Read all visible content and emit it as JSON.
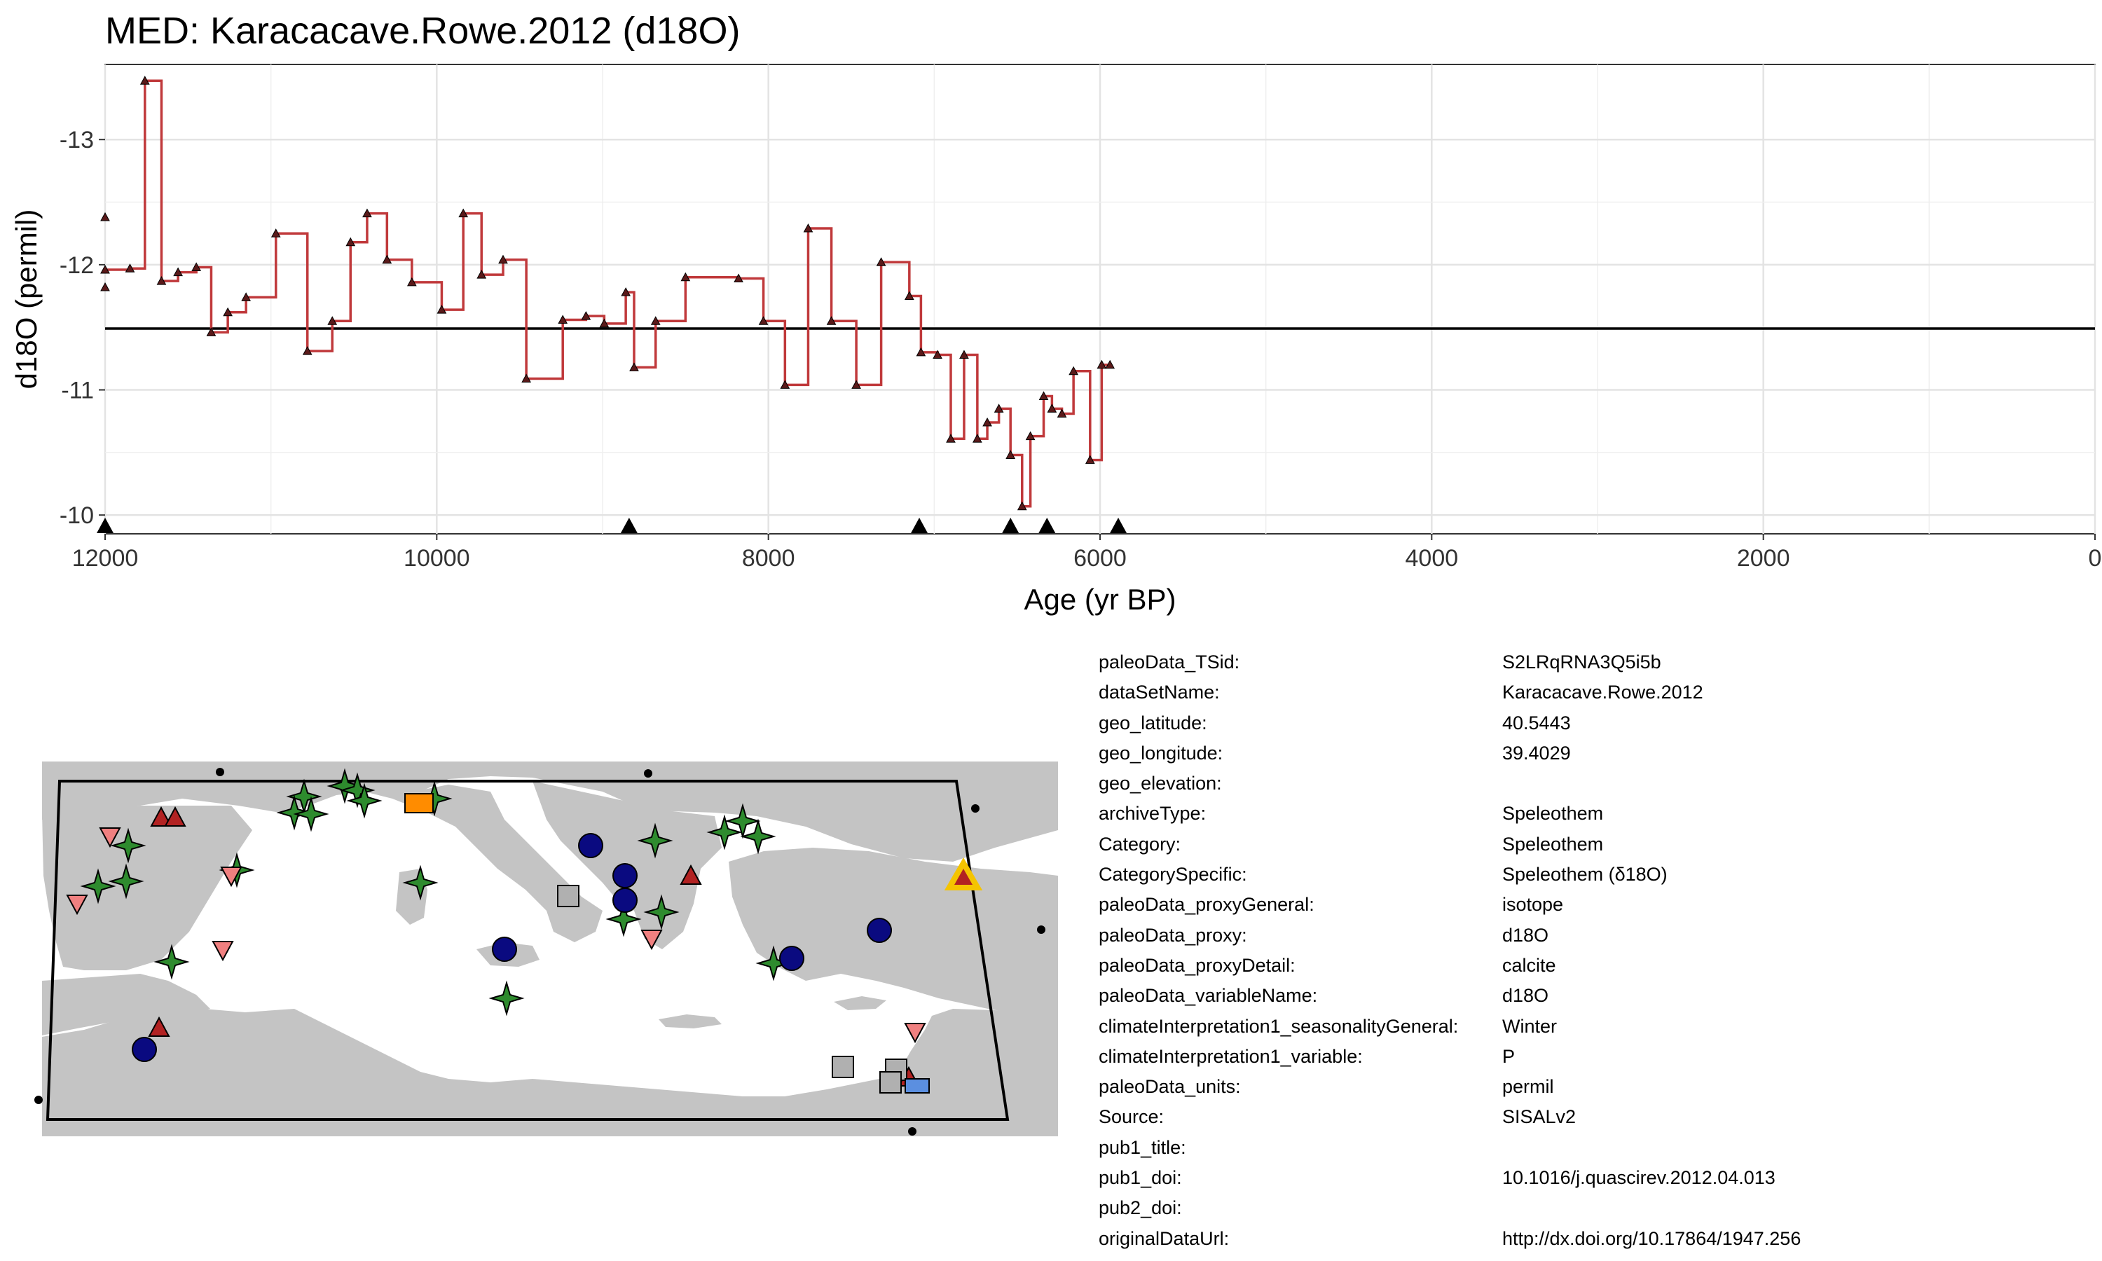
{
  "title": "MED: Karacacave.Rowe.2012 (d18O)",
  "chart_data": {
    "type": "line",
    "title": "MED: Karacacave.Rowe.2012 (d18O)",
    "xlabel": "Age (yr BP)",
    "ylabel": "d18O (permil)",
    "x_reversed": true,
    "y_reversed": true,
    "xlim": [
      12000,
      0
    ],
    "ylim": [
      -13.6,
      -9.85
    ],
    "xticks": [
      "12000",
      "10000",
      "8000",
      "6000",
      "4000",
      "2000",
      "0"
    ],
    "yticks": [
      "-13",
      "-12",
      "-11",
      "-10"
    ],
    "grid": true,
    "series": [
      {
        "line_style": "step",
        "line_color": "#c0393b",
        "marker_color": "#5a1a1a",
        "x": [
          12000,
          11850,
          11760,
          11660,
          11560,
          11450,
          11360,
          11260,
          11150,
          10970,
          10780,
          10630,
          10520,
          10420,
          10300,
          10150,
          9970,
          9840,
          9730,
          9600,
          9460,
          9240,
          9100,
          8990,
          8860,
          8810,
          8680,
          8500,
          8180,
          8030,
          7900,
          7760,
          7620,
          7470,
          7320,
          7150,
          7080,
          6980,
          6900,
          6820,
          6740,
          6680,
          6610,
          6540,
          6470,
          6420,
          6340,
          6290,
          6230,
          6160,
          6060,
          5990,
          5940
        ],
        "y": [
          -11.96,
          -11.97,
          -13.47,
          -11.87,
          -11.94,
          -11.98,
          -11.46,
          -11.62,
          -11.74,
          -12.25,
          -11.31,
          -11.55,
          -12.18,
          -12.41,
          -12.04,
          -11.86,
          -11.64,
          -12.41,
          -11.92,
          -12.04,
          -11.09,
          -11.56,
          -11.59,
          -11.53,
          -11.78,
          -11.18,
          -11.55,
          -11.9,
          -11.89,
          -11.55,
          -11.04,
          -12.29,
          -11.55,
          -11.04,
          -12.02,
          -11.75,
          -11.3,
          -11.28,
          -10.61,
          -11.28,
          -10.61,
          -10.74,
          -10.85,
          -10.48,
          -10.07,
          -10.63,
          -10.95,
          -10.85,
          -10.81,
          -11.15,
          -10.44,
          -11.2,
          -11.2
        ]
      }
    ],
    "hline": -11.49,
    "extra_markers": [
      {
        "x": 12000,
        "y": -12.38
      },
      {
        "x": 12000,
        "y": -11.82
      }
    ],
    "age_markers": [
      12000,
      8840,
      7090,
      6540,
      6320,
      5890
    ]
  },
  "metadata": [
    {
      "key": "paleoData_TSid:",
      "value": "S2LRqRNA3Q5i5b"
    },
    {
      "key": "dataSetName:",
      "value": "Karacacave.Rowe.2012"
    },
    {
      "key": "geo_latitude:",
      "value": "40.5443"
    },
    {
      "key": "geo_longitude:",
      "value": "39.4029"
    },
    {
      "key": "geo_elevation:",
      "value": ""
    },
    {
      "key": "archiveType:",
      "value": "Speleothem"
    },
    {
      "key": "Category:",
      "value": "Speleothem"
    },
    {
      "key": "CategorySpecific:",
      "value": "Speleothem (δ18O)"
    },
    {
      "key": "paleoData_proxyGeneral:",
      "value": "isotope"
    },
    {
      "key": "paleoData_proxy:",
      "value": "d18O"
    },
    {
      "key": "paleoData_proxyDetail:",
      "value": "calcite"
    },
    {
      "key": "paleoData_variableName:",
      "value": "d18O"
    },
    {
      "key": "climateInterpretation1_seasonalityGeneral:",
      "value": "Winter"
    },
    {
      "key": "climateInterpretation1_variable:",
      "value": "P"
    },
    {
      "key": "paleoData_units:",
      "value": "permil"
    },
    {
      "key": "Source:",
      "value": "SISALv2"
    },
    {
      "key": "pub1_title:",
      "value": ""
    },
    {
      "key": "pub1_doi:",
      "value": "10.1016/j.quascirev.2012.04.013"
    },
    {
      "key": "pub2_doi:",
      "value": ""
    },
    {
      "key": "originalDataUrl:",
      "value": "http://dx.doi.org/10.17864/1947.256"
    }
  ],
  "map": {
    "land_color": "#c4c4c4",
    "sea_color": "#ffffff",
    "sites": [
      {
        "symbol": "star",
        "color": "#2e8b2e"
      },
      {
        "symbol": "circle",
        "color": "#0a0a80"
      },
      {
        "symbol": "triangle-up",
        "color": "#b22222"
      },
      {
        "symbol": "triangle-down",
        "color": "#f08080"
      },
      {
        "symbol": "square",
        "color": "#b0b0b0"
      },
      {
        "symbol": "square",
        "color": "#5b8fe0"
      },
      {
        "symbol": "half-square",
        "color": "#ff8c00"
      },
      {
        "symbol": "highlight-triangle",
        "color": "#f5c400"
      }
    ]
  }
}
